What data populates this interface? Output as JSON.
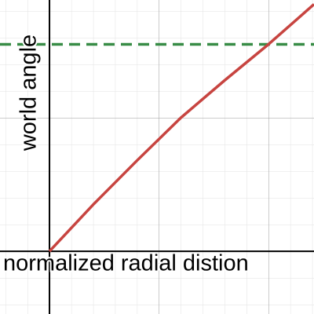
{
  "chart_data": {
    "type": "line",
    "x_label": "normalized radial distion",
    "y_label": "world angle",
    "x": [
      0,
      0.2,
      0.4,
      0.6,
      0.8,
      1.0,
      1.208
    ],
    "series": [
      {
        "color": "#c74440",
        "values": [
          0,
          0.35,
          0.68,
          1.0,
          1.28,
          1.55,
          1.85
        ]
      }
    ],
    "reference_line": {
      "color": "#388c46",
      "value": 1.55,
      "dashed": true
    },
    "xlim": [
      -0.226,
      1.208
    ],
    "ylim": [
      -0.47,
      1.882
    ],
    "grid": true
  }
}
